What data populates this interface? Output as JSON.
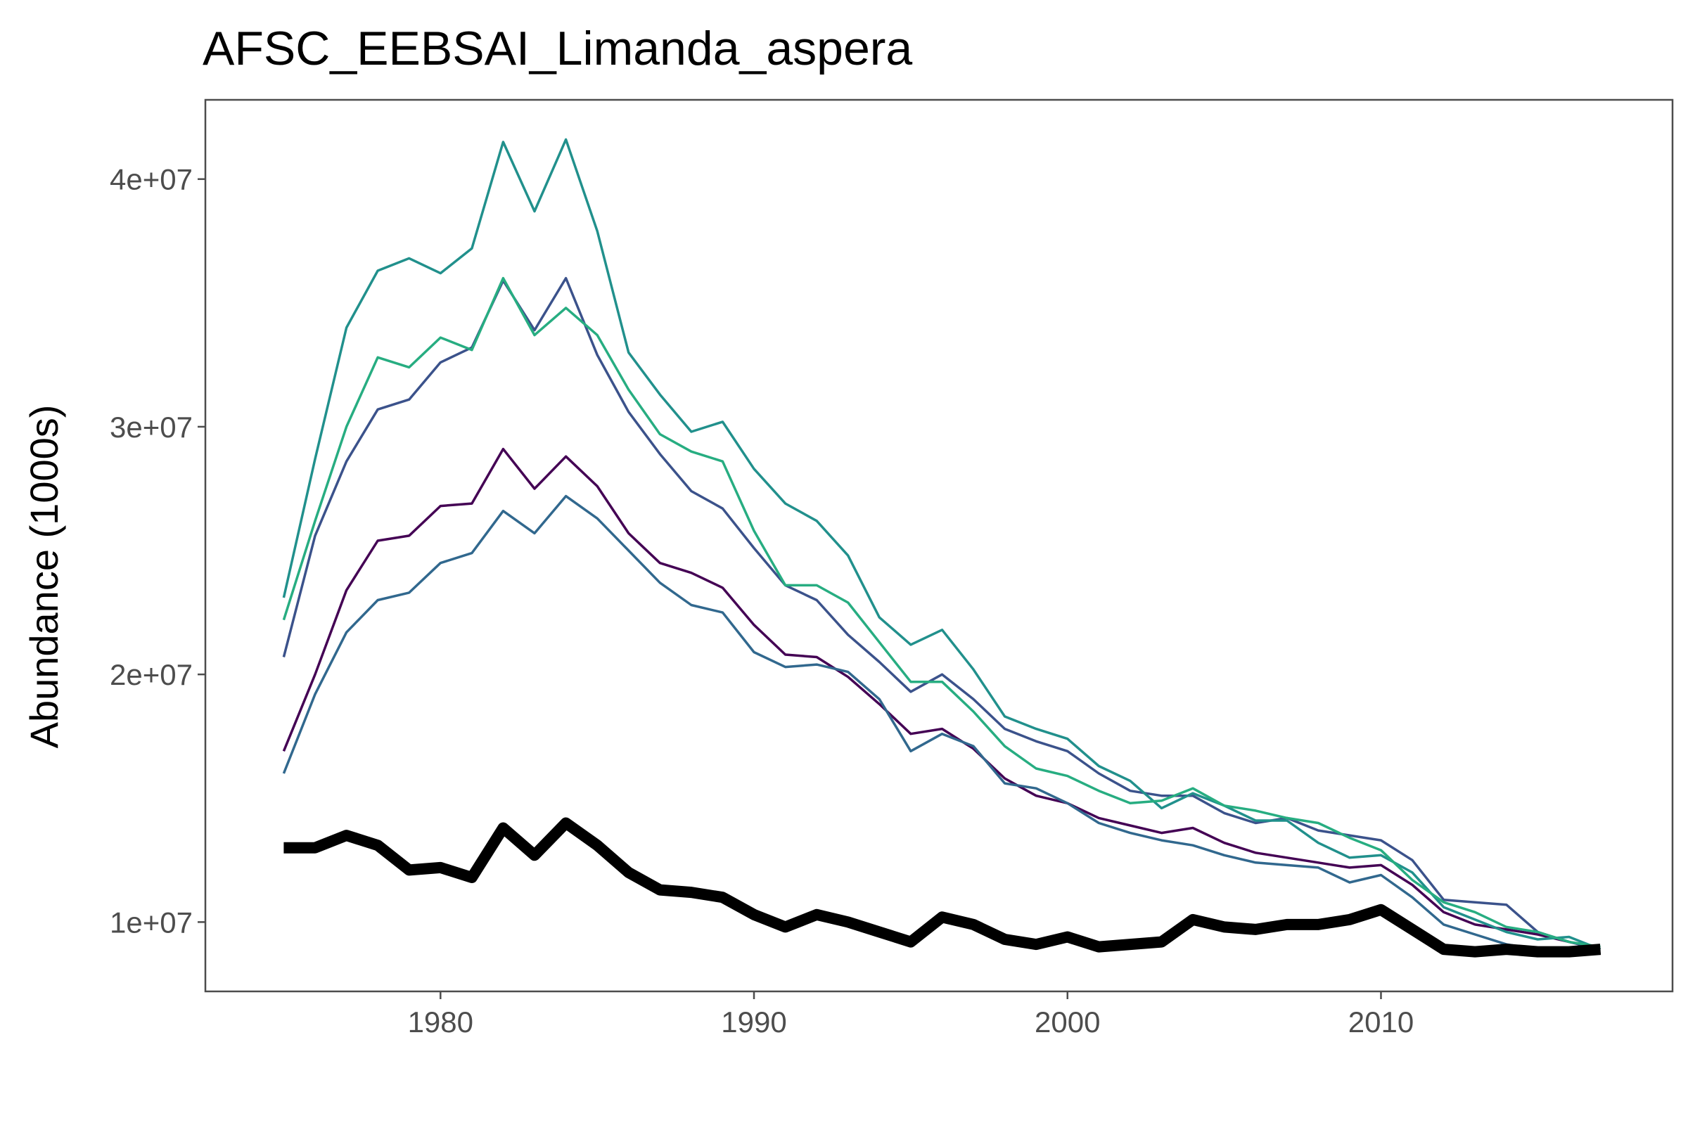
{
  "chart_data": {
    "type": "line",
    "title": "AFSC_EEBSAI_Limanda_aspera",
    "xlabel": "",
    "ylabel": "Abundance (1000s)",
    "xlim": [
      1972.5,
      2019.3
    ],
    "ylim": [
      7200000,
      43200000
    ],
    "x_ticks": [
      1980,
      1990,
      2000,
      2010
    ],
    "x_tick_labels": [
      "1980",
      "1990",
      "2000",
      "2010"
    ],
    "y_ticks": [
      10000000,
      20000000,
      30000000,
      40000000
    ],
    "y_tick_labels": [
      "1e+07",
      "2e+07",
      "3e+07",
      "4e+07"
    ],
    "grid": false,
    "legend": "none",
    "x": [
      1975,
      1976,
      1977,
      1978,
      1979,
      1980,
      1981,
      1982,
      1983,
      1984,
      1985,
      1986,
      1987,
      1988,
      1989,
      1990,
      1991,
      1992,
      1993,
      1994,
      1995,
      1996,
      1997,
      1998,
      1999,
      2000,
      2001,
      2002,
      2003,
      2004,
      2005,
      2006,
      2007,
      2008,
      2009,
      2010,
      2011,
      2012,
      2013,
      2014,
      2015,
      2016,
      2017
    ],
    "series": [
      {
        "color": "#440154",
        "width": 3.5,
        "values": [
          16900000,
          20000000,
          23400000,
          25400000,
          25600000,
          26800000,
          26900000,
          29100000,
          27500000,
          28800000,
          27600000,
          25700000,
          24500000,
          24100000,
          23500000,
          22000000,
          20800000,
          20700000,
          19900000,
          18800000,
          17600000,
          17800000,
          17000000,
          15800000,
          15100000,
          14800000,
          14200000,
          13900000,
          13600000,
          13800000,
          13200000,
          12800000,
          12600000,
          12400000,
          12200000,
          12300000,
          11500000,
          10400000,
          9900000,
          9700000,
          9500000,
          9200000,
          8900000
        ]
      },
      {
        "color": "#3b528b",
        "width": 3.5,
        "values": [
          20700000,
          25600000,
          28600000,
          30700000,
          31100000,
          32600000,
          33200000,
          35900000,
          33900000,
          36000000,
          32900000,
          30600000,
          28900000,
          27400000,
          26700000,
          25100000,
          23600000,
          23000000,
          21600000,
          20500000,
          19300000,
          20000000,
          19000000,
          17800000,
          17300000,
          16900000,
          16000000,
          15300000,
          15100000,
          15100000,
          14400000,
          14000000,
          14200000,
          13700000,
          13500000,
          13300000,
          12500000,
          10900000,
          10800000,
          10700000,
          9600000,
          9200000,
          8900000
        ]
      },
      {
        "color": "#31688e",
        "width": 3.5,
        "values": [
          16000000,
          19200000,
          21700000,
          23000000,
          23300000,
          24500000,
          24900000,
          26600000,
          25700000,
          27200000,
          26300000,
          25000000,
          23700000,
          22800000,
          22500000,
          20900000,
          20300000,
          20400000,
          20100000,
          19000000,
          16900000,
          17600000,
          17100000,
          15600000,
          15400000,
          14800000,
          14000000,
          13600000,
          13300000,
          13100000,
          12700000,
          12400000,
          12300000,
          12200000,
          11600000,
          11900000,
          11000000,
          9900000,
          9500000,
          9100000,
          8900000,
          8800000,
          8900000
        ]
      },
      {
        "color": "#21908c",
        "width": 3.5,
        "values": [
          23100000,
          28700000,
          34000000,
          36300000,
          36800000,
          36200000,
          37200000,
          41500000,
          38700000,
          41600000,
          37900000,
          33000000,
          31300000,
          29800000,
          30200000,
          28300000,
          26900000,
          26200000,
          24800000,
          22300000,
          21200000,
          21800000,
          20200000,
          18300000,
          17800000,
          17400000,
          16300000,
          15700000,
          14600000,
          15200000,
          14700000,
          14100000,
          14100000,
          13200000,
          12600000,
          12700000,
          12000000,
          10600000,
          10100000,
          9600000,
          9300000,
          9400000,
          8900000
        ]
      },
      {
        "color": "#27ad81",
        "width": 3.5,
        "values": [
          22200000,
          26200000,
          30000000,
          32800000,
          32400000,
          33600000,
          33100000,
          36000000,
          33700000,
          34800000,
          33700000,
          31500000,
          29700000,
          29000000,
          28600000,
          25800000,
          23600000,
          23600000,
          22900000,
          21300000,
          19700000,
          19700000,
          18500000,
          17100000,
          16200000,
          15900000,
          15300000,
          14800000,
          14900000,
          15400000,
          14700000,
          14500000,
          14200000,
          14000000,
          13400000,
          12900000,
          11700000,
          10800000,
          10400000,
          9800000,
          9600000,
          9200000,
          9000000
        ]
      },
      {
        "color": "#000000",
        "width": 16,
        "values": [
          13000000,
          13000000,
          13500000,
          13100000,
          12100000,
          12200000,
          11800000,
          13800000,
          12700000,
          14000000,
          13100000,
          12000000,
          11300000,
          11200000,
          11000000,
          10300000,
          9800000,
          10300000,
          10000000,
          9600000,
          9200000,
          10200000,
          9900000,
          9300000,
          9100000,
          9400000,
          9000000,
          9100000,
          9200000,
          10100000,
          9800000,
          9700000,
          9900000,
          9900000,
          10100000,
          10500000,
          9700000,
          8900000,
          8800000,
          8900000,
          8800000,
          8800000,
          8900000
        ]
      }
    ]
  }
}
